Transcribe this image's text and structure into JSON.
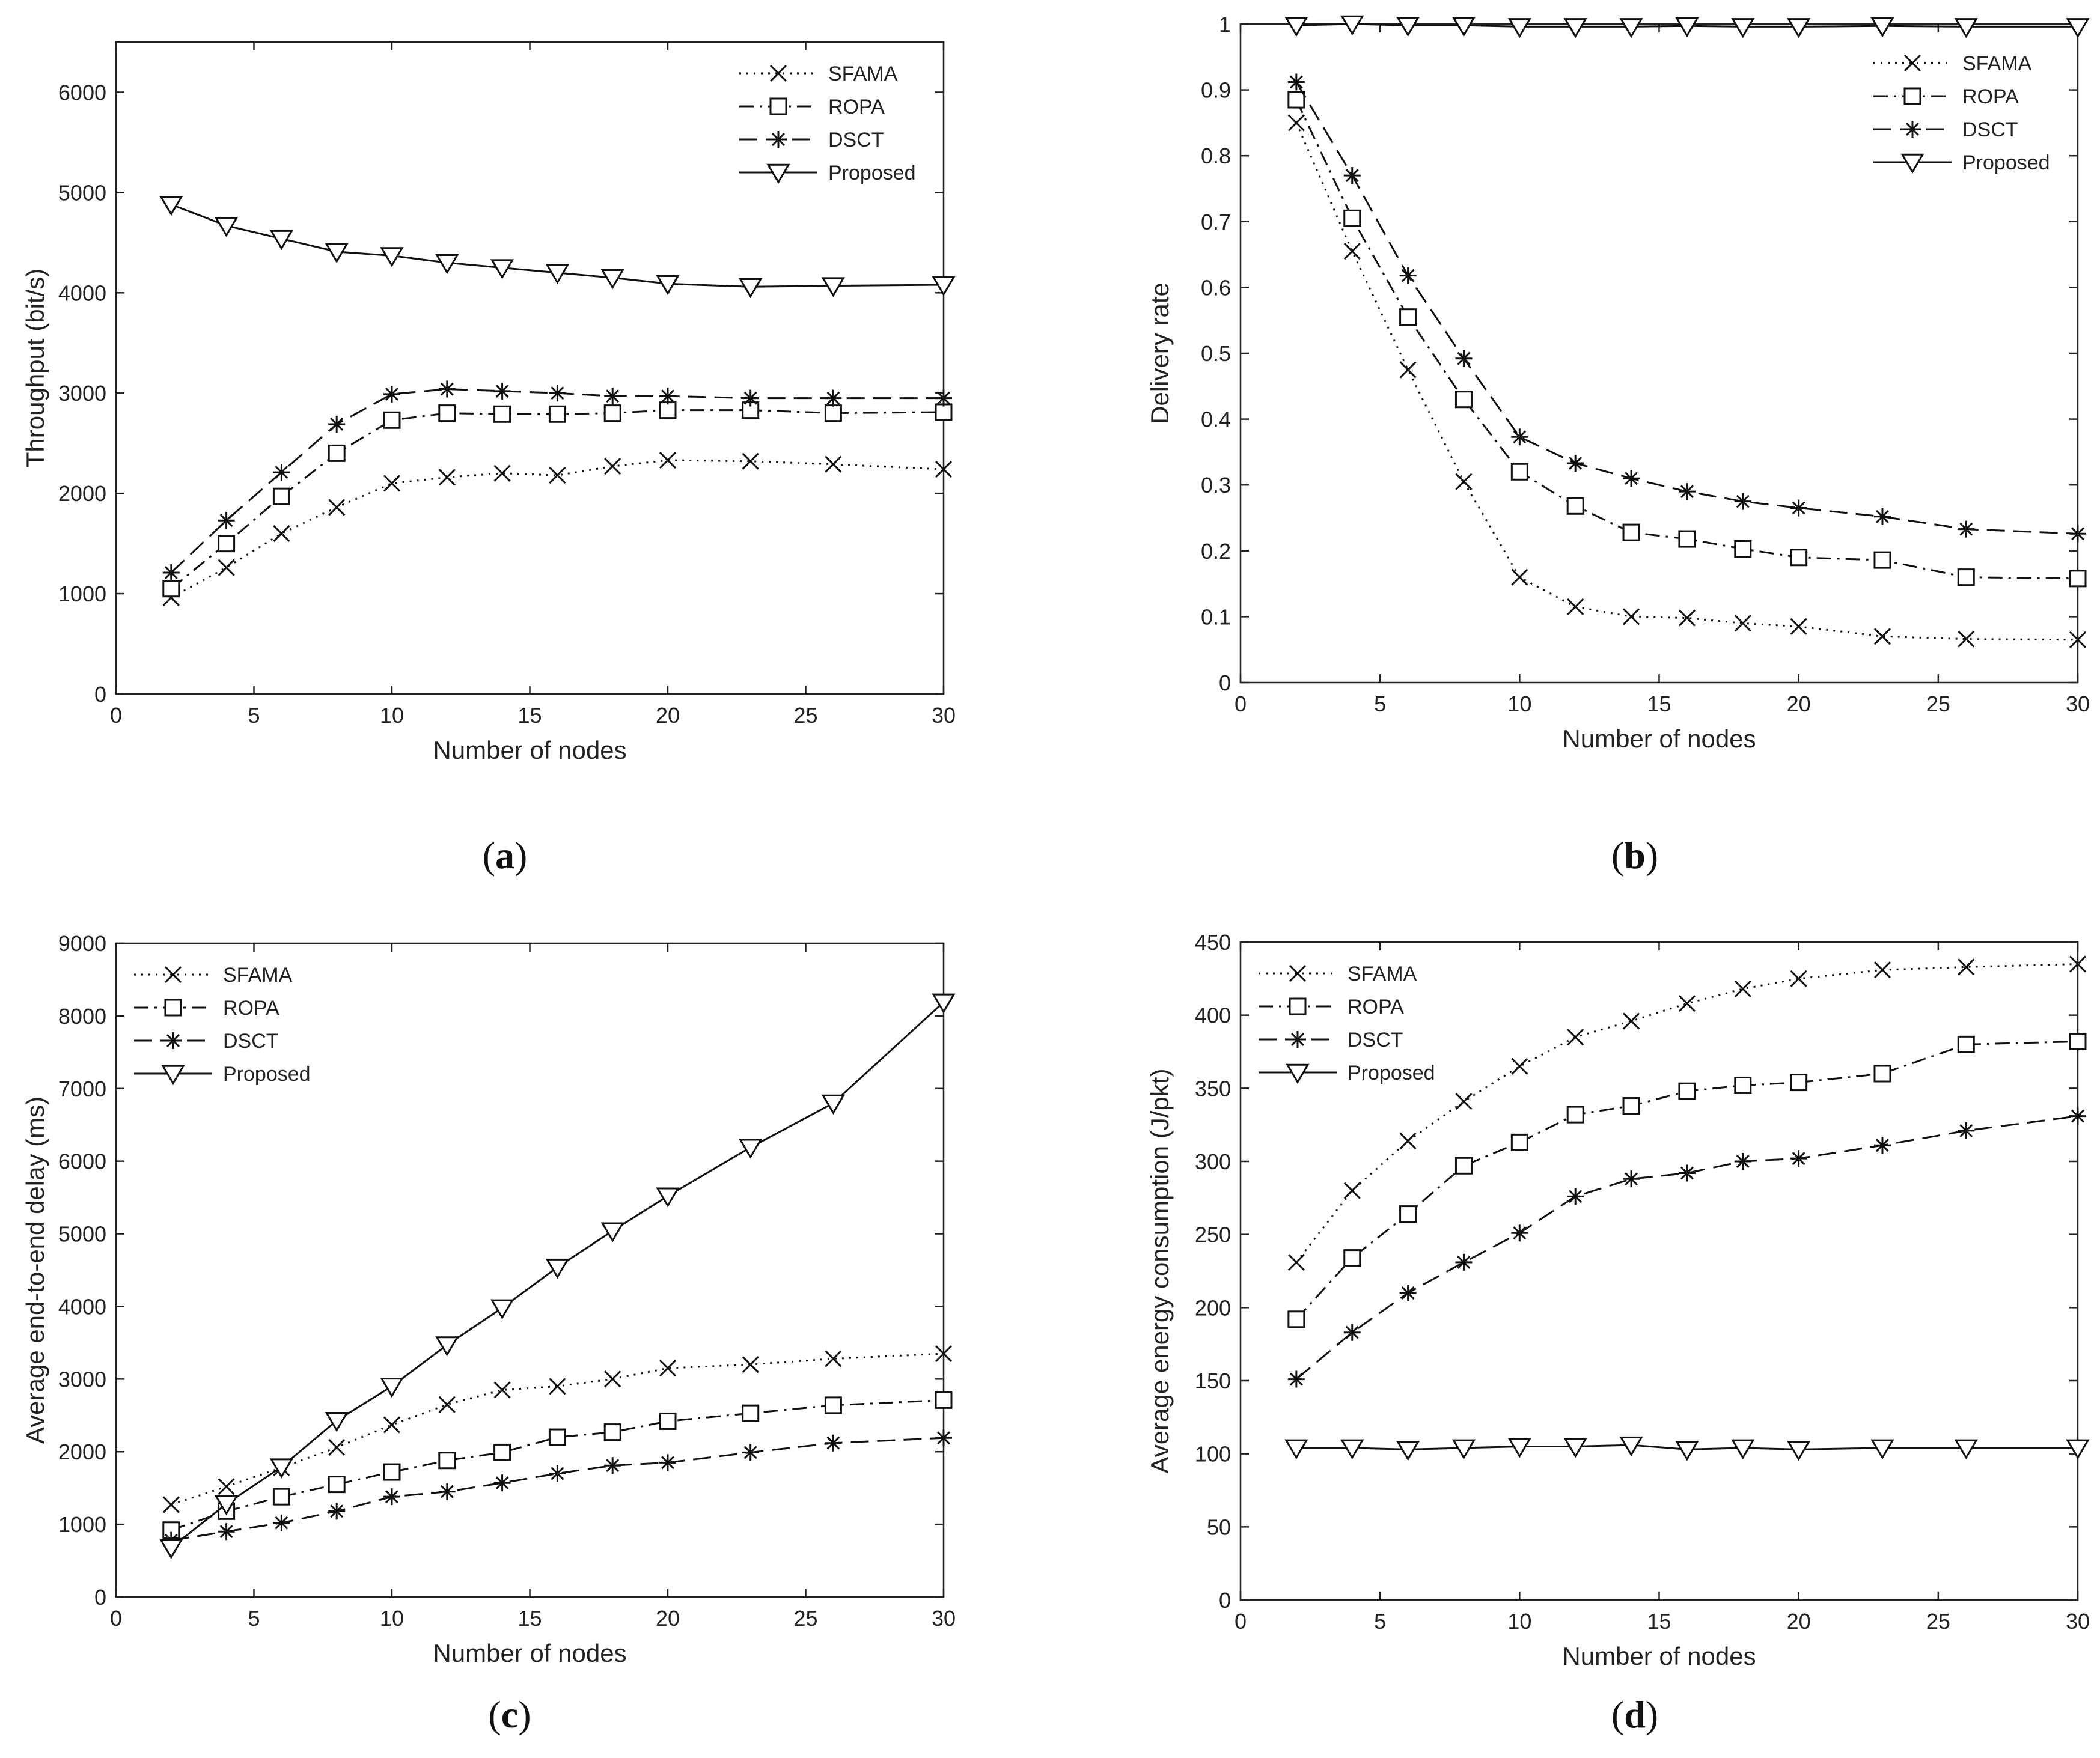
{
  "figure": {
    "captions": [
      "(a)",
      "(b)",
      "(c)",
      "(d)"
    ]
  },
  "chart_data": [
    {
      "type": "line",
      "panel": "a",
      "caption": "(a)",
      "title": "",
      "xlabel": "Number of nodes",
      "ylabel": "Throughput (bit/s)",
      "xlim": [
        0,
        30
      ],
      "ylim": [
        0,
        6500
      ],
      "xticks": [
        0,
        5,
        10,
        15,
        20,
        25,
        30
      ],
      "yticks": [
        0,
        1000,
        2000,
        3000,
        4000,
        5000,
        6000
      ],
      "grid": false,
      "legend_position": "top-right",
      "x": [
        2,
        4,
        6,
        8,
        10,
        12,
        14,
        16,
        18,
        20,
        23,
        26,
        30
      ],
      "series": [
        {
          "name": "SFAMA",
          "values": [
            960,
            1260,
            1600,
            1860,
            2100,
            2160,
            2200,
            2180,
            2270,
            2330,
            2320,
            2290,
            2240
          ]
        },
        {
          "name": "ROPA",
          "values": [
            1050,
            1500,
            1970,
            2400,
            2730,
            2800,
            2790,
            2790,
            2800,
            2830,
            2830,
            2800,
            2810
          ]
        },
        {
          "name": "DSCT",
          "values": [
            1210,
            1730,
            2210,
            2690,
            2990,
            3040,
            3020,
            3000,
            2970,
            2970,
            2950,
            2950,
            2950
          ]
        },
        {
          "name": "Proposed",
          "values": [
            4880,
            4670,
            4540,
            4410,
            4370,
            4300,
            4250,
            4200,
            4150,
            4090,
            4060,
            4070,
            4080
          ]
        }
      ]
    },
    {
      "type": "line",
      "panel": "b",
      "caption": "(b)",
      "title": "",
      "xlabel": "Number of nodes",
      "ylabel": "Delivery rate",
      "xlim": [
        0,
        30
      ],
      "ylim": [
        0,
        1
      ],
      "xticks": [
        0,
        5,
        10,
        15,
        20,
        25,
        30
      ],
      "yticks": [
        0,
        0.1,
        0.2,
        0.3,
        0.4,
        0.5,
        0.6,
        0.7,
        0.8,
        0.9,
        1
      ],
      "grid": false,
      "legend_position": "top-right",
      "x": [
        2,
        4,
        6,
        8,
        10,
        12,
        14,
        16,
        18,
        20,
        23,
        26,
        30
      ],
      "series": [
        {
          "name": "SFAMA",
          "values": [
            0.85,
            0.655,
            0.475,
            0.305,
            0.16,
            0.115,
            0.1,
            0.098,
            0.09,
            0.085,
            0.07,
            0.066,
            0.065
          ]
        },
        {
          "name": "ROPA",
          "values": [
            0.885,
            0.705,
            0.555,
            0.43,
            0.32,
            0.268,
            0.228,
            0.218,
            0.203,
            0.19,
            0.186,
            0.16,
            0.158
          ]
        },
        {
          "name": "DSCT",
          "values": [
            0.912,
            0.77,
            0.618,
            0.492,
            0.373,
            0.333,
            0.31,
            0.29,
            0.275,
            0.265,
            0.252,
            0.233,
            0.226
          ]
        },
        {
          "name": "Proposed",
          "values": [
            0.998,
            1.0,
            0.998,
            0.998,
            0.996,
            0.996,
            0.996,
            0.997,
            0.996,
            0.996,
            0.997,
            0.996,
            0.996
          ]
        }
      ]
    },
    {
      "type": "line",
      "panel": "c",
      "caption": "(c)",
      "title": "",
      "xlabel": "Number of nodes",
      "ylabel": "Average end-to-end delay (ms)",
      "xlim": [
        0,
        30
      ],
      "ylim": [
        0,
        9000
      ],
      "xticks": [
        0,
        5,
        10,
        15,
        20,
        25,
        30
      ],
      "yticks": [
        0,
        1000,
        2000,
        3000,
        4000,
        5000,
        6000,
        7000,
        8000,
        9000
      ],
      "grid": false,
      "legend_position": "top-left",
      "x": [
        2,
        4,
        6,
        8,
        10,
        12,
        14,
        16,
        18,
        20,
        23,
        26,
        30
      ],
      "series": [
        {
          "name": "SFAMA",
          "values": [
            1270,
            1520,
            1780,
            2060,
            2370,
            2650,
            2850,
            2900,
            3000,
            3150,
            3200,
            3280,
            3350
          ]
        },
        {
          "name": "ROPA",
          "values": [
            920,
            1180,
            1380,
            1550,
            1720,
            1880,
            1990,
            2200,
            2270,
            2420,
            2530,
            2640,
            2710
          ]
        },
        {
          "name": "DSCT",
          "values": [
            780,
            900,
            1020,
            1180,
            1380,
            1450,
            1570,
            1700,
            1810,
            1850,
            1990,
            2120,
            2190
          ]
        },
        {
          "name": "Proposed",
          "values": [
            680,
            1280,
            1790,
            2430,
            2900,
            3470,
            3980,
            4540,
            5040,
            5520,
            6190,
            6800,
            8190
          ]
        }
      ]
    },
    {
      "type": "line",
      "panel": "d",
      "caption": "(d)",
      "title": "",
      "xlabel": "Number of nodes",
      "ylabel": "Average energy consumption (J/pkt)",
      "xlim": [
        0,
        30
      ],
      "ylim": [
        0,
        450
      ],
      "xticks": [
        0,
        5,
        10,
        15,
        20,
        25,
        30
      ],
      "yticks": [
        0,
        50,
        100,
        150,
        200,
        250,
        300,
        350,
        400,
        450
      ],
      "grid": false,
      "legend_position": "top-left",
      "x": [
        2,
        4,
        6,
        8,
        10,
        12,
        14,
        16,
        18,
        20,
        23,
        26,
        30
      ],
      "series": [
        {
          "name": "SFAMA",
          "values": [
            231,
            280,
            314,
            341,
            365,
            385,
            396,
            408,
            418,
            425,
            431,
            433,
            435
          ]
        },
        {
          "name": "ROPA",
          "values": [
            192,
            234,
            264,
            297,
            313,
            332,
            338,
            348,
            352,
            354,
            360,
            380,
            382
          ]
        },
        {
          "name": "DSCT",
          "values": [
            151,
            183,
            210,
            231,
            251,
            276,
            288,
            292,
            300,
            302,
            311,
            321,
            331
          ]
        },
        {
          "name": "Proposed",
          "values": [
            104,
            104,
            103,
            104,
            105,
            105,
            106,
            103,
            104,
            103,
            104,
            104,
            104
          ]
        }
      ]
    }
  ]
}
